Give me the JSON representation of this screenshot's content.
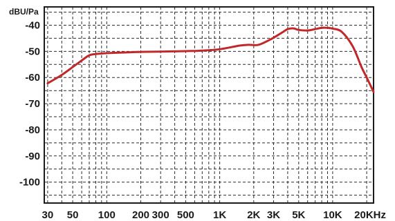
{
  "chart_data": {
    "type": "line",
    "title": "",
    "ylabel": "dBU/Pa",
    "xlabel": "",
    "x_scale": "log",
    "xlim": [
      28,
      23000
    ],
    "ylim": [
      -108,
      -33
    ],
    "grid": true,
    "x_ticks": [
      {
        "value": 30,
        "label": "30"
      },
      {
        "value": 50,
        "label": "50"
      },
      {
        "value": 100,
        "label": "100"
      },
      {
        "value": 200,
        "label": "200"
      },
      {
        "value": 300,
        "label": "300"
      },
      {
        "value": 500,
        "label": "500"
      },
      {
        "value": 1000,
        "label": "1K"
      },
      {
        "value": 2000,
        "label": "2K"
      },
      {
        "value": 3000,
        "label": "3K"
      },
      {
        "value": 5000,
        "label": "5K"
      },
      {
        "value": 10000,
        "label": "10K"
      },
      {
        "value": 20000,
        "label": "20KHz"
      }
    ],
    "y_ticks": [
      {
        "value": -40,
        "label": "-40"
      },
      {
        "value": -50,
        "label": "-50"
      },
      {
        "value": -60,
        "label": "-60"
      },
      {
        "value": -70,
        "label": "-70"
      },
      {
        "value": -80,
        "label": "-80"
      },
      {
        "value": -90,
        "label": "-90"
      },
      {
        "value": -100,
        "label": "-100"
      }
    ],
    "series": [
      {
        "color": "#c0282a",
        "x": [
          30,
          40,
          50,
          60,
          70,
          80,
          100,
          150,
          200,
          300,
          500,
          700,
          1000,
          1500,
          1800,
          2200,
          2800,
          3500,
          4000,
          4500,
          5000,
          6000,
          7000,
          8000,
          9000,
          10000,
          12000,
          15000,
          18000,
          20000,
          23000
        ],
        "y": [
          -62.2,
          -59,
          -56,
          -53.5,
          -51.5,
          -51,
          -50.7,
          -50.4,
          -50.2,
          -50.1,
          -49.9,
          -49.7,
          -49.2,
          -47.8,
          -47.5,
          -47.5,
          -45.5,
          -43,
          -41.5,
          -41.2,
          -41.8,
          -42,
          -41.5,
          -41,
          -41,
          -41.3,
          -42.5,
          -48,
          -56,
          -60,
          -65.5
        ]
      }
    ]
  }
}
